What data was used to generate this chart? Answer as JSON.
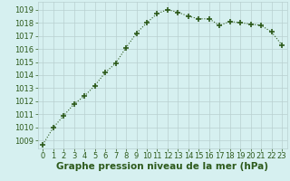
{
  "x": [
    0,
    1,
    2,
    3,
    4,
    5,
    6,
    7,
    8,
    9,
    10,
    11,
    12,
    13,
    14,
    15,
    16,
    17,
    18,
    19,
    20,
    21,
    22,
    23
  ],
  "y": [
    1008.7,
    1010.0,
    1010.9,
    1011.8,
    1012.4,
    1013.2,
    1014.2,
    1014.9,
    1016.1,
    1017.2,
    1018.0,
    1018.7,
    1019.0,
    1018.8,
    1018.5,
    1018.3,
    1018.3,
    1017.8,
    1018.1,
    1018.0,
    1017.9,
    1017.8,
    1017.3,
    1016.3
  ],
  "line_color": "#2d5a1b",
  "marker": "+",
  "marker_size": 4,
  "marker_lw": 1.2,
  "line_width": 0.8,
  "bg_color": "#d6f0f0",
  "grid_color": "#b8d0d0",
  "xlabel": "Graphe pression niveau de la mer (hPa)",
  "xlabel_fontsize": 7.5,
  "xlabel_color": "#2d5a1b",
  "ylabel_ticks": [
    1009,
    1010,
    1011,
    1012,
    1013,
    1014,
    1015,
    1016,
    1017,
    1018,
    1019
  ],
  "xlim": [
    -0.5,
    23.5
  ],
  "ylim": [
    1008.4,
    1019.6
  ],
  "tick_fontsize": 6,
  "tick_color": "#2d5a1b"
}
